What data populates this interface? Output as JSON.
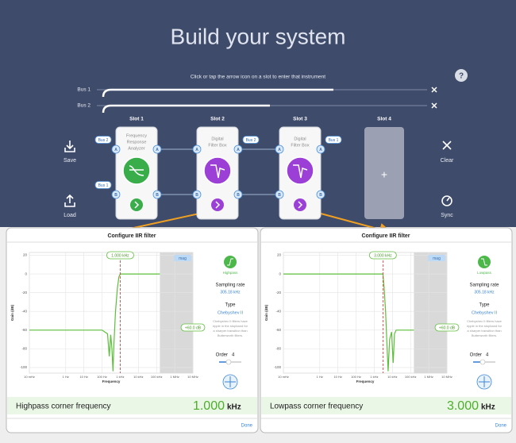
{
  "header": {
    "title": "Build your system",
    "subtitle": "Click or tap the arrow icon on a slot to enter that instrument",
    "help": "?"
  },
  "buses": [
    "Bus 1",
    "Bus 2"
  ],
  "ports": [
    "A",
    "B"
  ],
  "slots": [
    {
      "label": "Slot 1",
      "name": [
        "Frequency",
        "Response",
        "Analyzer"
      ],
      "input_tags": [
        "Bus 2",
        "Bus 1"
      ]
    },
    {
      "label": "Slot 2",
      "name": [
        "Digital",
        "Filter Box"
      ],
      "output_tags": [
        "Bus 2"
      ]
    },
    {
      "label": "Slot 3",
      "name": [
        "Digital",
        "Filter Box"
      ],
      "output_tags": [
        "Bus 1"
      ]
    },
    {
      "label": "Slot 4",
      "add": "+"
    }
  ],
  "actions": {
    "save": "Save",
    "load": "Load",
    "clear": "Clear",
    "sync": "Sync"
  },
  "panels": [
    {
      "title": "Configure IIR filter",
      "mode": "Highpass",
      "sampling_label": "Sampling rate",
      "sampling_rate": "305.18 kHz",
      "type_label": "Type",
      "filter_type": "Chebyshev II",
      "description": [
        "Chebyshev II filters have",
        "ripple in the stopband for",
        "a sharper transition than",
        "Butterworth filters."
      ],
      "gain_tag": "+60.0 dB",
      "order_label": "Order",
      "order": "4",
      "corner_label": "Highpass corner frequency",
      "corner_value": "1.000",
      "corner_unit": "kHz",
      "done": "Done",
      "chart": {
        "type": "line",
        "xlabel": "Frequency",
        "ylabel": "Gain (dB)",
        "log_x": true,
        "grid": true,
        "color": "#5cbf3a",
        "marker": {
          "x": 1000,
          "label": "1.000 kHz"
        },
        "toggle": "mag",
        "x": [
          0.01,
          100,
          200,
          250,
          300,
          350,
          400,
          450,
          550,
          700,
          850,
          1000,
          152000
        ],
        "y": [
          -60,
          -60,
          -64,
          -88,
          -65,
          -80,
          -104,
          -75,
          -40,
          -15,
          -3,
          0,
          0
        ],
        "xlim": [
          0.01,
          10000000
        ],
        "ylim": [
          -106,
          23
        ],
        "xticks": [
          {
            "value": 0.01,
            "label": "10 mHz"
          },
          {
            "value": 1,
            "label": "1 Hz"
          },
          {
            "value": 10,
            "label": "10 Hz"
          },
          {
            "value": 100,
            "label": "100 Hz"
          },
          {
            "value": 1000,
            "label": "1 kHz"
          },
          {
            "value": 10000,
            "label": "10 kHz"
          },
          {
            "value": 100000,
            "label": "100 kHz"
          },
          {
            "value": 1000000,
            "label": "1 MHz"
          },
          {
            "value": 10000000,
            "label": "10 MHz"
          }
        ],
        "yticks": [
          20,
          0,
          -20,
          -40,
          -60,
          -80,
          -100
        ]
      }
    },
    {
      "title": "Configure IIR filter",
      "mode": "Lowpass",
      "sampling_label": "Sampling rate",
      "sampling_rate": "305.18 kHz",
      "type_label": "Type",
      "filter_type": "Chebyshev II",
      "description": [
        "Chebyshev II filters have",
        "ripple in the stopband for",
        "a sharper transition than",
        "Butterworth filters."
      ],
      "gain_tag": "+60.0 dB",
      "order_label": "Order",
      "order": "4",
      "corner_label": "Lowpass corner frequency",
      "corner_value": "3.000",
      "corner_unit": "kHz",
      "done": "Done",
      "chart": {
        "type": "line",
        "xlabel": "Frequency",
        "ylabel": "Gain (dB)",
        "log_x": true,
        "grid": true,
        "color": "#5cbf3a",
        "marker": {
          "x": 3000,
          "label": "3.000 kHz"
        },
        "toggle": "mag",
        "x": [
          0.01,
          1000,
          3000,
          3500,
          4200,
          5000,
          5800,
          7000,
          9000,
          11000,
          13000,
          16000,
          152000
        ],
        "y": [
          0,
          0,
          0,
          -15,
          -40,
          -75,
          -104,
          -70,
          -62,
          -95,
          -64,
          -60,
          -60
        ],
        "xlim": [
          0.01,
          10000000
        ],
        "ylim": [
          -106,
          23
        ],
        "xticks": [
          {
            "value": 0.01,
            "label": "10 mHz"
          },
          {
            "value": 1,
            "label": "1 Hz"
          },
          {
            "value": 10,
            "label": "10 Hz"
          },
          {
            "value": 100,
            "label": "100 Hz"
          },
          {
            "value": 1000,
            "label": "1 kHz"
          },
          {
            "value": 10000,
            "label": "10 kHz"
          },
          {
            "value": 100000,
            "label": "100 kHz"
          },
          {
            "value": 1000000,
            "label": "1 MHz"
          },
          {
            "value": 10000000,
            "label": "10 MHz"
          }
        ],
        "yticks": [
          20,
          0,
          -20,
          -40,
          -60,
          -80,
          -100
        ]
      }
    }
  ]
}
